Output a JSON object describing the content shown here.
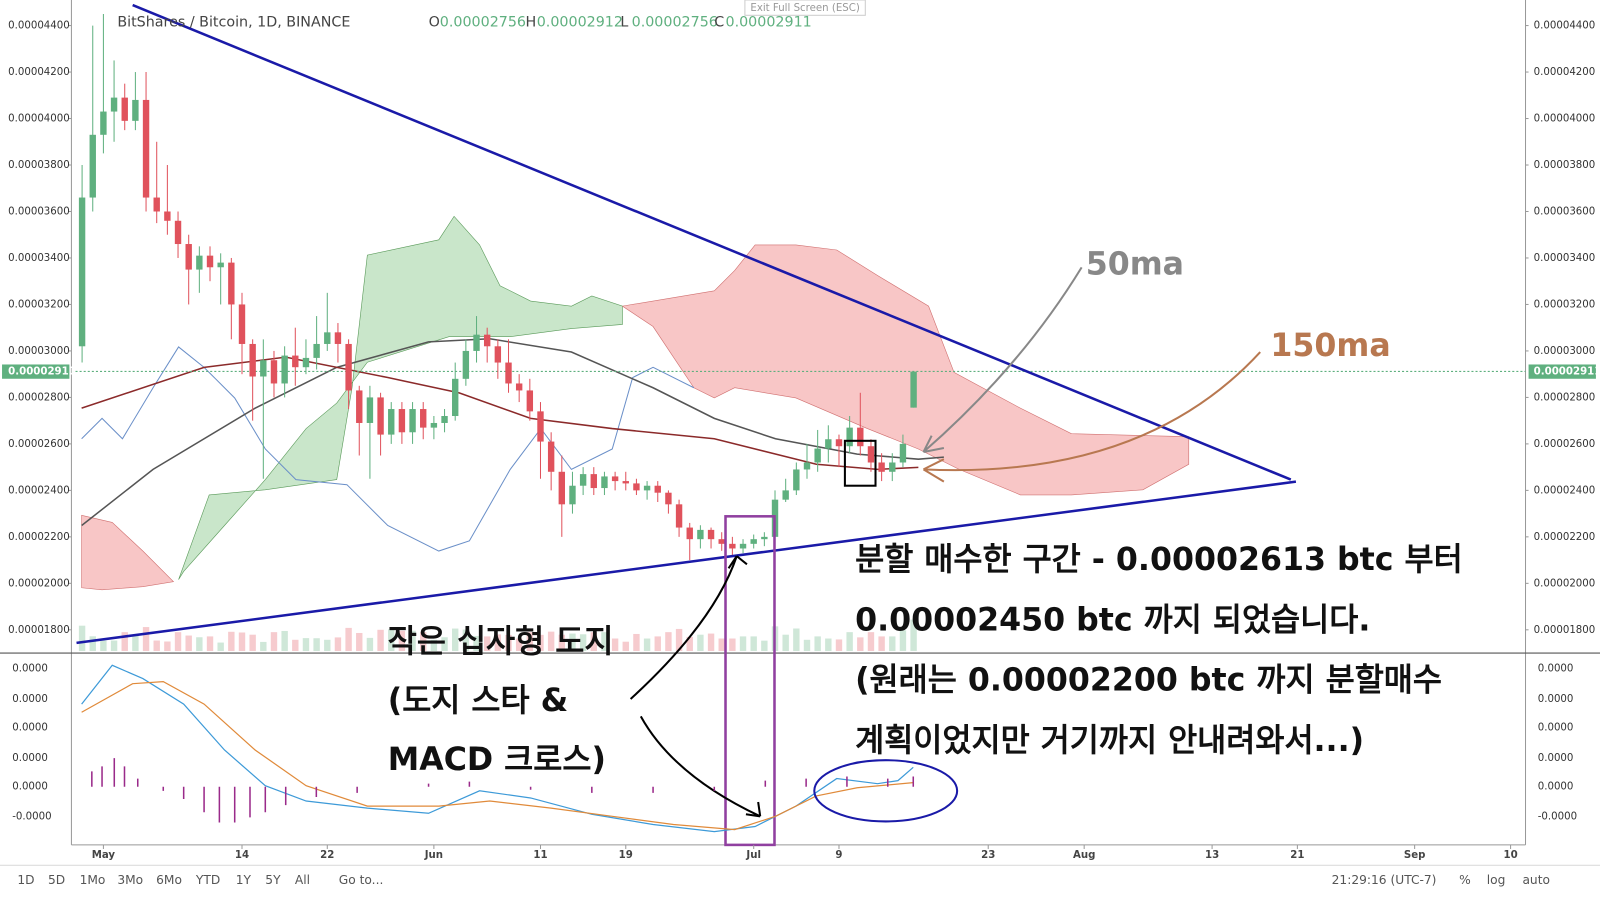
{
  "header": {
    "symbol": "BitShares / Bitcoin, 1D, BINANCE",
    "exit_full_screen": "Exit Full Screen (ESC)",
    "ohlc": [
      {
        "key": "O",
        "value": "0.00002756"
      },
      {
        "key": "H",
        "value": "0.00002912"
      },
      {
        "key": "L",
        "value": "0.00002756"
      },
      {
        "key": "C",
        "value": "0.00002911"
      }
    ]
  },
  "chart_data": {
    "type": "candlestick",
    "up_color": "#5fb07f",
    "down_color": "#e0525c",
    "xlim": [
      -1,
      135.4
    ],
    "ylim": [
      1.7e-05,
      4.51e-05
    ],
    "xticks": [
      {
        "value": 2,
        "label": "May"
      },
      {
        "value": 15,
        "label": "14"
      },
      {
        "value": 23,
        "label": "22"
      },
      {
        "value": 33,
        "label": "Jun"
      },
      {
        "value": 43,
        "label": "11"
      },
      {
        "value": 51,
        "label": "19"
      },
      {
        "value": 63,
        "label": "Jul"
      },
      {
        "value": 71,
        "label": "9"
      },
      {
        "value": 85,
        "label": "23"
      },
      {
        "value": 94,
        "label": "Aug"
      },
      {
        "value": 106,
        "label": "13"
      },
      {
        "value": 114,
        "label": "21"
      },
      {
        "value": 125,
        "label": "Sep"
      },
      {
        "value": 134,
        "label": "10"
      }
    ],
    "yticks": [
      {
        "value": 4.4e-05,
        "label": "0.00004400"
      },
      {
        "value": 4.2e-05,
        "label": "0.00004200"
      },
      {
        "value": 4e-05,
        "label": "0.00004000"
      },
      {
        "value": 3.8e-05,
        "label": "0.00003800"
      },
      {
        "value": 3.6e-05,
        "label": "0.00003600"
      },
      {
        "value": 3.4e-05,
        "label": "0.00003400"
      },
      {
        "value": 3.2e-05,
        "label": "0.00003200"
      },
      {
        "value": 3e-05,
        "label": "0.00003000"
      },
      {
        "value": 2.8e-05,
        "label": "0.00002800"
      },
      {
        "value": 2.6e-05,
        "label": "0.00002600"
      },
      {
        "value": 2.4e-05,
        "label": "0.00002400"
      },
      {
        "value": 2.2e-05,
        "label": "0.00002200"
      },
      {
        "value": 2e-05,
        "label": "0.00002000"
      },
      {
        "value": 1.8e-05,
        "label": "0.00001800"
      }
    ],
    "last_price": {
      "value": 2.911e-05,
      "label": "0.00002911"
    },
    "candles": [
      [
        3.02e-05,
        3.8e-05,
        2.95e-05,
        3.66e-05
      ],
      [
        3.66e-05,
        4.4e-05,
        3.6e-05,
        3.93e-05
      ],
      [
        3.93e-05,
        4.45e-05,
        3.85e-05,
        4.03e-05
      ],
      [
        4.03e-05,
        4.25e-05,
        3.9e-05,
        4.09e-05
      ],
      [
        4.09e-05,
        4.15e-05,
        3.95e-05,
        3.99e-05
      ],
      [
        3.99e-05,
        4.2e-05,
        3.95e-05,
        4.08e-05
      ],
      [
        4.08e-05,
        4.2e-05,
        3.6e-05,
        3.66e-05
      ],
      [
        3.66e-05,
        3.9e-05,
        3.55e-05,
        3.6e-05
      ],
      [
        3.6e-05,
        3.8e-05,
        3.5e-05,
        3.56e-05
      ],
      [
        3.56e-05,
        3.6e-05,
        3.4e-05,
        3.46e-05
      ],
      [
        3.46e-05,
        3.5e-05,
        3.2e-05,
        3.35e-05
      ],
      [
        3.35e-05,
        3.45e-05,
        3.25e-05,
        3.41e-05
      ],
      [
        3.41e-05,
        3.45e-05,
        3.3e-05,
        3.36e-05
      ],
      [
        3.36e-05,
        3.42e-05,
        3.2e-05,
        3.38e-05
      ],
      [
        3.38e-05,
        3.4e-05,
        3.05e-05,
        3.2e-05
      ],
      [
        3.2e-05,
        3.25e-05,
        2.9e-05,
        3.03e-05
      ],
      [
        3.03e-05,
        3.05e-05,
        2.7e-05,
        2.89e-05
      ],
      [
        2.89e-05,
        3.05e-05,
        2.45e-05,
        2.96e-05
      ],
      [
        2.96e-05,
        3e-05,
        2.8e-05,
        2.86e-05
      ],
      [
        2.86e-05,
        3.02e-05,
        2.8e-05,
        2.98e-05
      ],
      [
        2.98e-05,
        3.1e-05,
        2.85e-05,
        2.93e-05
      ],
      [
        2.93e-05,
        3.05e-05,
        2.9e-05,
        2.97e-05
      ],
      [
        2.97e-05,
        3.15e-05,
        2.92e-05,
        3.03e-05
      ],
      [
        3.03e-05,
        3.25e-05,
        3e-05,
        3.08e-05
      ],
      [
        3.08e-05,
        3.12e-05,
        2.95e-05,
        3.03e-05
      ],
      [
        3.03e-05,
        3.05e-05,
        2.75e-05,
        2.83e-05
      ],
      [
        2.83e-05,
        2.85e-05,
        2.55e-05,
        2.69e-05
      ],
      [
        2.69e-05,
        2.85e-05,
        2.45e-05,
        2.8e-05
      ],
      [
        2.8e-05,
        2.82e-05,
        2.55e-05,
        2.64e-05
      ],
      [
        2.64e-05,
        2.78e-05,
        2.6e-05,
        2.75e-05
      ],
      [
        2.75e-05,
        2.78e-05,
        2.6e-05,
        2.65e-05
      ],
      [
        2.65e-05,
        2.78e-05,
        2.6e-05,
        2.75e-05
      ],
      [
        2.75e-05,
        2.78e-05,
        2.62e-05,
        2.67e-05
      ],
      [
        2.67e-05,
        2.72e-05,
        2.62e-05,
        2.69e-05
      ],
      [
        2.69e-05,
        2.75e-05,
        2.65e-05,
        2.72e-05
      ],
      [
        2.72e-05,
        2.95e-05,
        2.7e-05,
        2.88e-05
      ],
      [
        2.88e-05,
        3.05e-05,
        2.85e-05,
        3e-05
      ],
      [
        3e-05,
        3.15e-05,
        2.95e-05,
        3.07e-05
      ],
      [
        3.07e-05,
        3.1e-05,
        2.95e-05,
        3.02e-05
      ],
      [
        3.02e-05,
        3.05e-05,
        2.88e-05,
        2.95e-05
      ],
      [
        2.95e-05,
        3.05e-05,
        2.82e-05,
        2.86e-05
      ],
      [
        2.86e-05,
        2.9e-05,
        2.78e-05,
        2.83e-05
      ],
      [
        2.83e-05,
        2.88e-05,
        2.7e-05,
        2.74e-05
      ],
      [
        2.74e-05,
        2.78e-05,
        2.45e-05,
        2.61e-05
      ],
      [
        2.61e-05,
        2.65e-05,
        2.4e-05,
        2.48e-05
      ],
      [
        2.48e-05,
        2.55e-05,
        2.2e-05,
        2.34e-05
      ],
      [
        2.34e-05,
        2.48e-05,
        2.3e-05,
        2.42e-05
      ],
      [
        2.42e-05,
        2.5e-05,
        2.38e-05,
        2.47e-05
      ],
      [
        2.47e-05,
        2.5e-05,
        2.38e-05,
        2.41e-05
      ],
      [
        2.41e-05,
        2.48e-05,
        2.38e-05,
        2.46e-05
      ],
      [
        2.46e-05,
        2.48e-05,
        2.4e-05,
        2.44e-05
      ],
      [
        2.44e-05,
        2.48e-05,
        2.4e-05,
        2.43e-05
      ],
      [
        2.43e-05,
        2.45e-05,
        2.38e-05,
        2.4e-05
      ],
      [
        2.4e-05,
        2.44e-05,
        2.36e-05,
        2.42e-05
      ],
      [
        2.42e-05,
        2.44e-05,
        2.35e-05,
        2.39e-05
      ],
      [
        2.39e-05,
        2.4e-05,
        2.3e-05,
        2.34e-05
      ],
      [
        2.34e-05,
        2.36e-05,
        2.2e-05,
        2.24e-05
      ],
      [
        2.24e-05,
        2.26e-05,
        2.1e-05,
        2.19e-05
      ],
      [
        2.19e-05,
        2.25e-05,
        2.15e-05,
        2.23e-05
      ],
      [
        2.23e-05,
        2.24e-05,
        2.15e-05,
        2.19e-05
      ],
      [
        2.19e-05,
        2.22e-05,
        2.14e-05,
        2.17e-05
      ],
      [
        2.17e-05,
        2.2e-05,
        2.12e-05,
        2.15e-05
      ],
      [
        2.15e-05,
        2.19e-05,
        2.13e-05,
        2.17e-05
      ],
      [
        2.17e-05,
        2.21e-05,
        2.15e-05,
        2.19e-05
      ],
      [
        2.19e-05,
        2.22e-05,
        2.16e-05,
        2.2e-05
      ],
      [
        2.2e-05,
        2.4e-05,
        2.18e-05,
        2.36e-05
      ],
      [
        2.36e-05,
        2.45e-05,
        2.35e-05,
        2.4e-05
      ],
      [
        2.4e-05,
        2.52e-05,
        2.38e-05,
        2.49e-05
      ],
      [
        2.49e-05,
        2.6e-05,
        2.45e-05,
        2.52e-05
      ],
      [
        2.52e-05,
        2.66e-05,
        2.48e-05,
        2.58e-05
      ],
      [
        2.58e-05,
        2.68e-05,
        2.52e-05,
        2.62e-05
      ],
      [
        2.62e-05,
        2.64e-05,
        2.5e-05,
        2.59e-05
      ],
      [
        2.59e-05,
        2.72e-05,
        2.56e-05,
        2.67e-05
      ],
      [
        2.67e-05,
        2.82e-05,
        2.55e-05,
        2.59e-05
      ],
      [
        2.59e-05,
        2.62e-05,
        2.48e-05,
        2.52e-05
      ],
      [
        2.52e-05,
        2.56e-05,
        2.44e-05,
        2.48e-05
      ],
      [
        2.48e-05,
        2.56e-05,
        2.44e-05,
        2.52e-05
      ],
      [
        2.52e-05,
        2.64e-05,
        2.5e-05,
        2.6e-05
      ],
      [
        2.756e-05,
        2.912e-05,
        2.756e-05,
        2.911e-05
      ]
    ],
    "macd_tick_labels": [
      "0.0000",
      "0.0000",
      "0.0000",
      "0.0000",
      "0.0000",
      "-0.0000"
    ],
    "annotations": {
      "ma50": "50ma",
      "ma150": "150ma",
      "doji": [
        "작은 십자형 도지",
        "(도지 스타 &",
        "MACD 크로스)"
      ],
      "note": [
        "분할 매수한 구간 - 0.00002613 btc 부터",
        "0.00002450 btc 까지 되었습니다.",
        "(원래는 0.00002200 btc 까지 분할매수",
        "계획이었지만 거기까지 안내려와서...)"
      ]
    }
  },
  "toolbar": {
    "ranges": [
      "1D",
      "5D",
      "1Mo",
      "3Mo",
      "6Mo",
      "YTD",
      "1Y",
      "5Y",
      "All"
    ],
    "goto": "Go to...",
    "clock": "21:29:16 (UTC-7)",
    "options": [
      "%",
      "log",
      "auto"
    ]
  }
}
